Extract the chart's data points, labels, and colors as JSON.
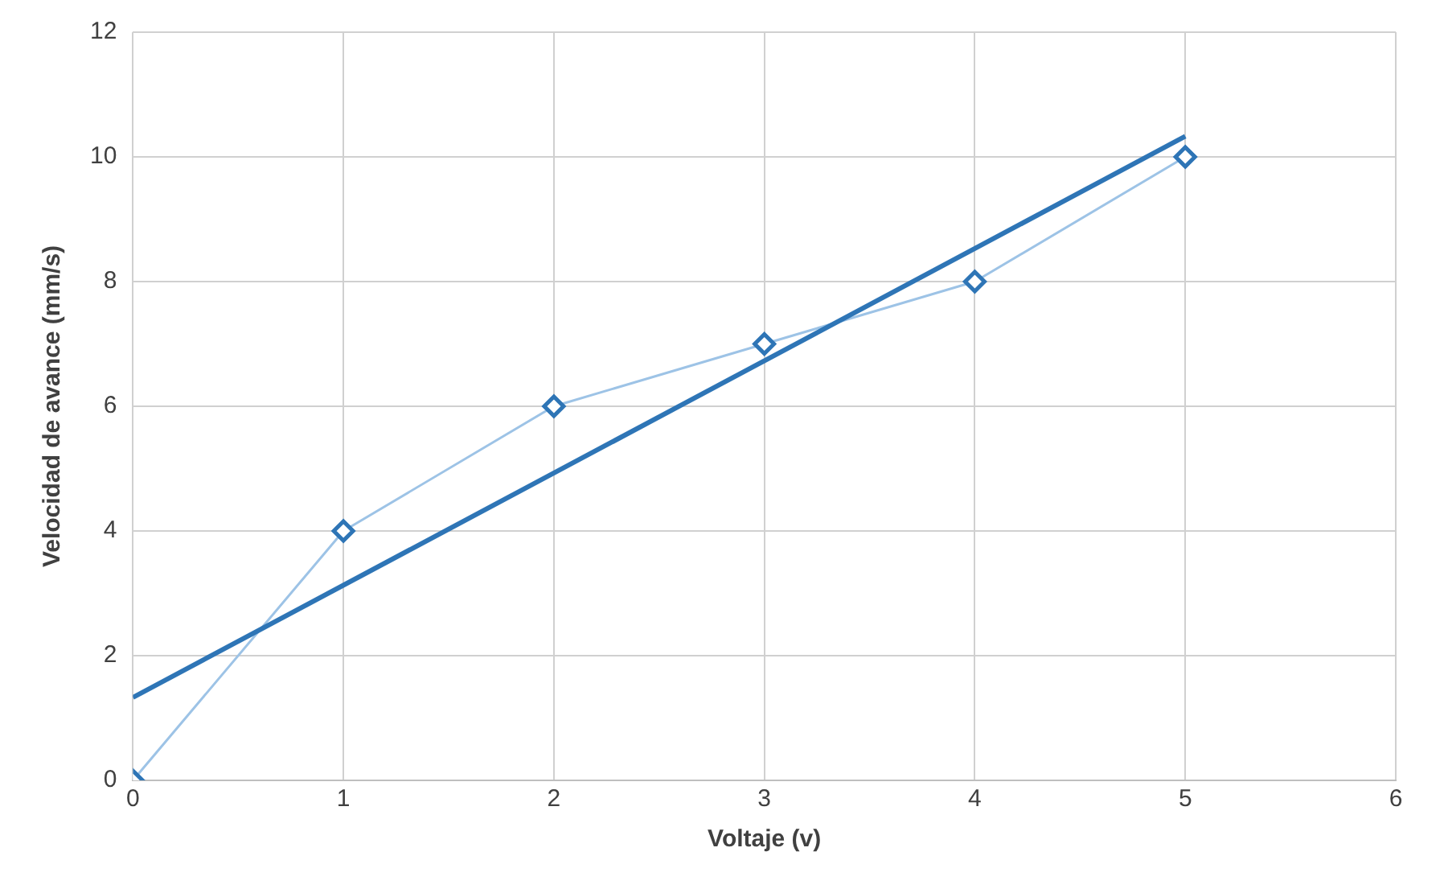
{
  "chart_data": {
    "type": "line",
    "xlabel": "Voltaje (v)",
    "ylabel": "Velocidad de avance (mm/s)",
    "xlim": [
      0,
      6
    ],
    "xticks": [
      0,
      1,
      2,
      3,
      4,
      5,
      6
    ],
    "ylim": [
      0,
      12
    ],
    "yticks": [
      0,
      2,
      4,
      6,
      8,
      10,
      12
    ],
    "grid": true,
    "series": [
      {
        "type": "line",
        "color": "#9dc3e6",
        "x": [
          0,
          1,
          2,
          3,
          4,
          5
        ],
        "values": [
          0,
          4,
          6,
          7,
          8,
          10
        ],
        "marker": "diamond"
      },
      {
        "type": "line",
        "color": "#2e75b6",
        "x": [
          0,
          5
        ],
        "values": [
          1.33,
          10.33
        ],
        "marker": "none"
      }
    ]
  }
}
